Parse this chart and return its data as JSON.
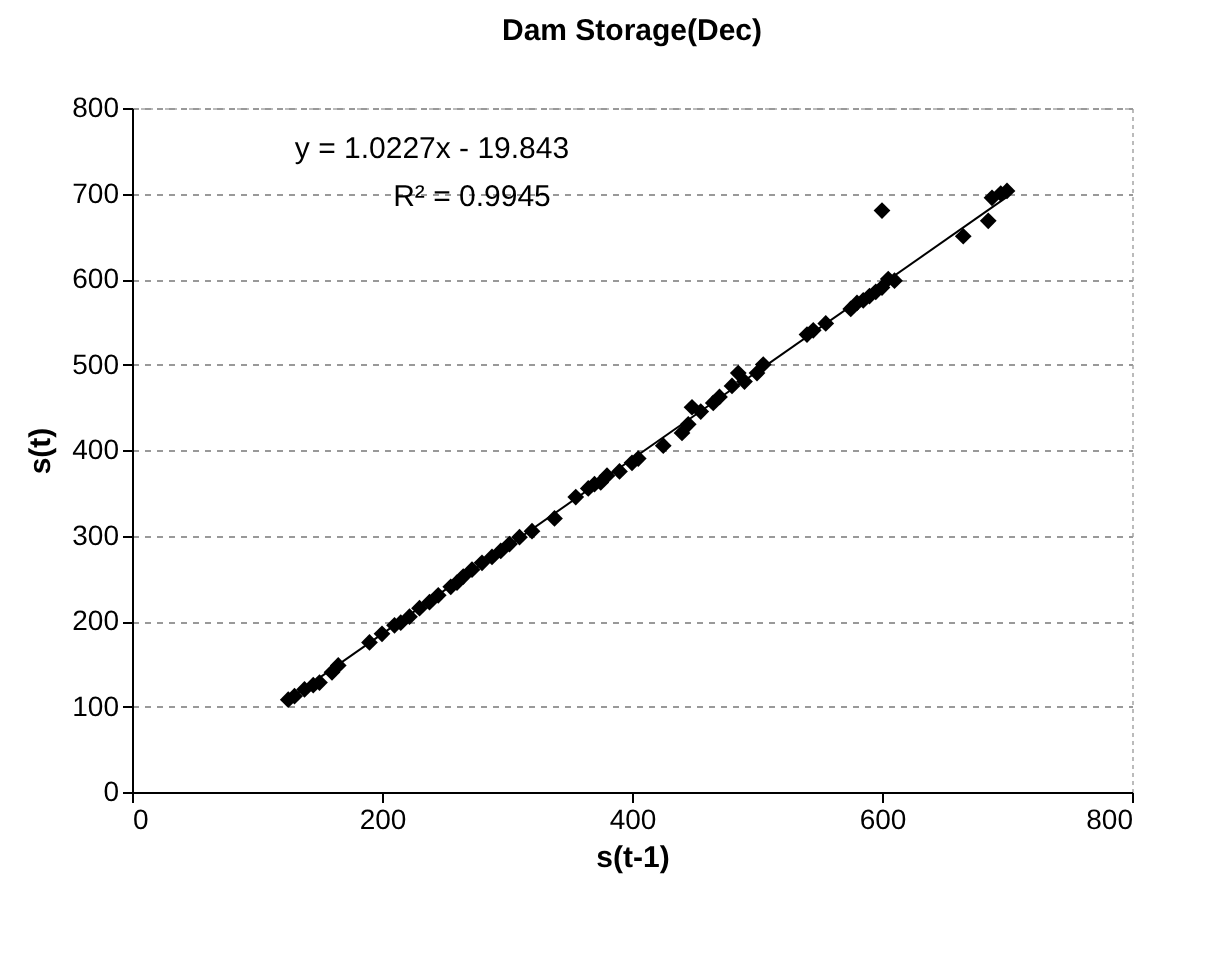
{
  "chart_data": {
    "type": "scatter",
    "title": "Dam Storage(Dec)",
    "xlabel": "s(t-1)",
    "ylabel": "s(t)",
    "xlim": [
      0,
      800
    ],
    "xticks": [
      0,
      200,
      400,
      600,
      800
    ],
    "ylim": [
      0,
      800
    ],
    "yticks": [
      0,
      100,
      200,
      300,
      400,
      500,
      600,
      700,
      800
    ],
    "grid": "y",
    "annotations": [
      "y = 1.0227x - 19.843",
      "R² = 0.9945"
    ],
    "series": [
      {
        "marker": "diamond",
        "color": "#000000",
        "x": [
          125,
          130,
          138,
          145,
          150,
          160,
          165,
          190,
          200,
          210,
          215,
          222,
          230,
          238,
          245,
          255,
          260,
          265,
          272,
          280,
          288,
          295,
          302,
          310,
          320,
          338,
          355,
          365,
          370,
          375,
          380,
          390,
          400,
          405,
          425,
          440,
          445,
          448,
          455,
          465,
          470,
          480,
          485,
          490,
          500,
          505,
          540,
          545,
          555,
          575,
          580,
          585,
          590,
          595,
          600,
          605,
          610,
          600,
          665,
          685,
          688,
          695,
          700
        ],
        "values": [
          108,
          112,
          120,
          125,
          128,
          140,
          148,
          175,
          185,
          195,
          198,
          205,
          215,
          222,
          230,
          240,
          245,
          252,
          260,
          268,
          275,
          282,
          290,
          298,
          305,
          320,
          345,
          355,
          360,
          362,
          370,
          375,
          385,
          390,
          405,
          420,
          430,
          450,
          445,
          455,
          462,
          475,
          490,
          480,
          490,
          500,
          535,
          540,
          548,
          565,
          572,
          575,
          580,
          585,
          590,
          600,
          598,
          680,
          650,
          668,
          695,
          700,
          703
        ]
      },
      {
        "type": "line",
        "color": "#000000",
        "line_style": "solid",
        "x": [
          125,
          700
        ],
        "values": [
          108,
          696
        ]
      }
    ]
  }
}
